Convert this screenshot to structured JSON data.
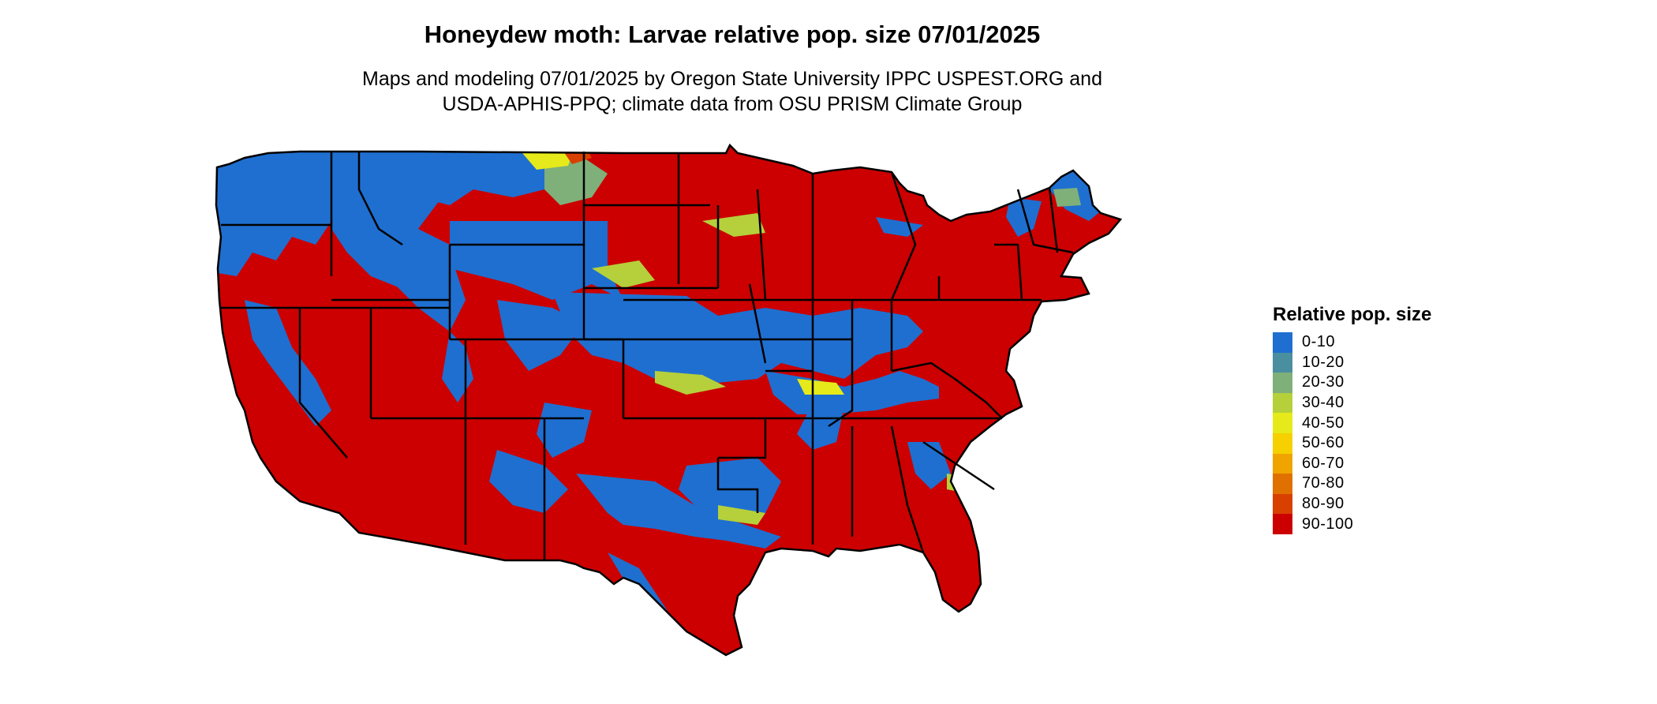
{
  "title": "Honeydew moth: Larvae relative pop. size 07/01/2025",
  "subtitle_line1": "Maps and modeling 07/01/2025 by Oregon State University IPPC USPEST.ORG and",
  "subtitle_line2": "USDA-APHIS-PPQ; climate data from OSU PRISM Climate Group",
  "legend": {
    "title": "Relative pop. size",
    "items": [
      {
        "label": "0-10",
        "color": "#1f6fd0"
      },
      {
        "label": "10-20",
        "color": "#4a8fa0"
      },
      {
        "label": "20-30",
        "color": "#7fb07a"
      },
      {
        "label": "30-40",
        "color": "#b5d03a"
      },
      {
        "label": "40-50",
        "color": "#e6ea1a"
      },
      {
        "label": "50-60",
        "color": "#f6d000"
      },
      {
        "label": "60-70",
        "color": "#efa400"
      },
      {
        "label": "70-80",
        "color": "#e07000"
      },
      {
        "label": "80-90",
        "color": "#d84000"
      },
      {
        "label": "90-100",
        "color": "#cc0000"
      }
    ]
  }
}
